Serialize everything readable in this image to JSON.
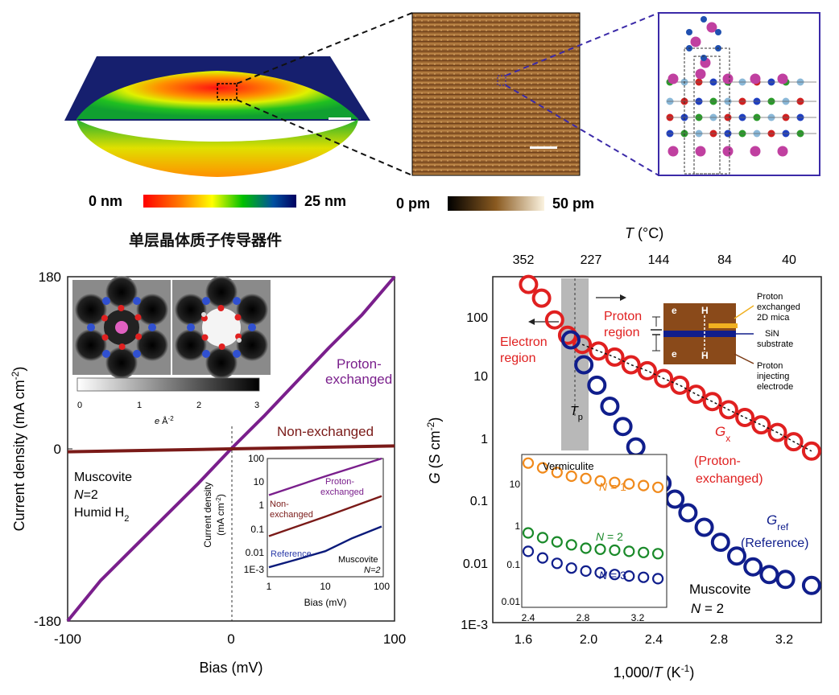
{
  "colors": {
    "proton": "#7a1f8c",
    "nonex": "#7a1a18",
    "ref": "#0a1a7a",
    "red": "#e02020",
    "blue": "#101e8c",
    "orange": "#f08a1c",
    "green": "#1a8a2a",
    "frame": "#3b2aa8"
  },
  "top": {
    "title": "单层晶体质子传导器件",
    "cb1": {
      "min": "0 nm",
      "max": "25 nm"
    },
    "cb2": {
      "min": "0 pm",
      "max": "50 pm"
    }
  },
  "left": {
    "ylabel": "Current density (mA cm",
    "ylabel_sup": "-2",
    "ylabel_end": ")",
    "xlabel": "Bias (mV)",
    "yticks": [
      "180",
      "0",
      "-180"
    ],
    "xticks": [
      "-100",
      "0",
      "100"
    ],
    "proton_label_1": "Proton-",
    "proton_label_2": "exchanged",
    "nonex_label": "Non-exchanged",
    "sample_1": "Muscovite",
    "sample_2_a": "N",
    "sample_2_b": "=2",
    "sample_3": "Humid H",
    "sample_3_sub": "2",
    "map_cb_ticks": [
      "0",
      "1",
      "2",
      "3"
    ],
    "map_cb_unit_a": "e",
    "map_cb_unit_b": " Å",
    "map_cb_unit_sup": "-2",
    "inset": {
      "yticks": [
        "100",
        "10",
        "1",
        "0.1",
        "0.01",
        "1E-3"
      ],
      "xticks": [
        "1",
        "10",
        "100"
      ],
      "xlabel": "Bias (mV)",
      "ylabel_1": "Current density",
      "ylabel_2": "(mA cm",
      "ylabel_sup": "-2",
      "ylabel_end": ")",
      "lbl_proton_1": "Proton-",
      "lbl_proton_2": "exchanged",
      "lbl_nonex_1": "Non-",
      "lbl_nonex_2": "exchanged",
      "lbl_ref": "Reference",
      "lbl_musc": "Muscovite",
      "lbl_n": "N=2"
    }
  },
  "right": {
    "top_label": "T",
    "top_unit": " (°C)",
    "top_ticks": [
      "352",
      "227",
      "144",
      "84",
      "40"
    ],
    "xlabel": "1,000/",
    "xlabel_t": "T",
    "xlabel_end": " (K",
    "xlabel_sup": "-1",
    "xlabel_close": ")",
    "ylabel_g": "G",
    "ylabel_rest": " (S cm",
    "ylabel_sup": "-2",
    "ylabel_end": ")",
    "yticks": [
      "100",
      "10",
      "1",
      "0.1",
      "0.01",
      "1E-3"
    ],
    "xticks": [
      "1.6",
      "2.0",
      "2.4",
      "2.8",
      "3.2"
    ],
    "electron_1": "Electron",
    "electron_2": "region",
    "proton_1": "Proton",
    "proton_2": "region",
    "tp": "T",
    "tp_sub": "p",
    "gx": "G",
    "gx_sub": "x",
    "gx_1": "(Proton-",
    "gx_2": "exchanged)",
    "gref": "G",
    "gref_sub": "ref",
    "gref_2": "(Reference)",
    "musc": "Muscovite",
    "musc_n": "N",
    "musc_n2": " = 2",
    "device": {
      "e": "e",
      "h": "H",
      "l1a": "Proton",
      "l1b": "exchanged",
      "l1c": "2D mica",
      "l2a": "SiN",
      "l2b": "substrate",
      "l3a": "Proton",
      "l3b": "injecting",
      "l3c": "electrode"
    },
    "inset": {
      "title": "Vermiculite",
      "n1": "N",
      "n1v": " = 1",
      "n2": "N",
      "n2v": " = 2",
      "n3": "N",
      "n3v": " = 3",
      "yticks": [
        "10",
        "1",
        "0.1",
        "0.01"
      ],
      "xticks": [
        "2.4",
        "2.8",
        "3.2"
      ]
    }
  },
  "chart_data": [
    {
      "type": "line",
      "xlabel": "Bias (mV)",
      "ylabel": "Current density (mA cm-2)",
      "xlim": [
        -100,
        100
      ],
      "ylim": [
        -180,
        180
      ],
      "series": [
        {
          "name": "Proton-exchanged",
          "x": [
            -100,
            -80,
            -60,
            -40,
            -20,
            0,
            20,
            40,
            60,
            80,
            100
          ],
          "y": [
            -180,
            -138,
            -104,
            -70,
            -36,
            0,
            34,
            70,
            106,
            140,
            180
          ]
        },
        {
          "name": "Non-exchanged",
          "x": [
            -100,
            0,
            100
          ],
          "y": [
            -3,
            0,
            3
          ]
        }
      ]
    },
    {
      "type": "line",
      "xlabel": "Bias (mV)",
      "ylabel": "Current density (mA cm-2)",
      "xscale": "log",
      "yscale": "log",
      "xlim": [
        1,
        100
      ],
      "ylim": [
        0.0005,
        100
      ],
      "series": [
        {
          "name": "Proton-exchanged",
          "x": [
            1,
            10,
            100
          ],
          "y": [
            2,
            15,
            120
          ]
        },
        {
          "name": "Non-exchanged",
          "x": [
            1,
            10,
            100
          ],
          "y": [
            0.025,
            0.2,
            1.8
          ]
        },
        {
          "name": "Reference",
          "x": [
            1,
            3,
            10,
            30,
            100
          ],
          "y": [
            0.0009,
            0.002,
            0.005,
            0.02,
            0.07
          ]
        }
      ]
    },
    {
      "type": "scatter",
      "xlabel": "1,000/T (K-1)",
      "ylabel": "G (S cm-2)",
      "yscale": "log",
      "xlim": [
        1.4,
        3.42
      ],
      "ylim": [
        0.001,
        400
      ],
      "series": [
        {
          "name": "Gx (Proton-exchanged)",
          "x": [
            1.62,
            1.7,
            1.78,
            1.86,
            1.95,
            2.05,
            2.15,
            2.25,
            2.35,
            2.45,
            2.55,
            2.65,
            2.75,
            2.85,
            2.95,
            3.05,
            3.15,
            3.25,
            3.36
          ],
          "y": [
            300,
            180,
            80,
            45,
            32,
            25,
            20,
            15,
            12,
            9,
            7,
            5,
            3.8,
            2.8,
            2.1,
            1.6,
            1.2,
            0.85,
            0.6
          ]
        },
        {
          "name": "Gref (Reference)",
          "x": [
            1.88,
            1.96,
            2.04,
            2.12,
            2.2,
            2.28,
            2.36,
            2.44,
            2.52,
            2.6,
            2.7,
            2.8,
            2.9,
            3.0,
            3.1,
            3.2,
            3.36
          ],
          "y": [
            38,
            15,
            7,
            3.2,
            1.5,
            0.7,
            0.35,
            0.18,
            0.1,
            0.06,
            0.035,
            0.02,
            0.012,
            0.008,
            0.006,
            0.005,
            0.004
          ]
        }
      ],
      "top_axis": {
        "label": "T (°C)",
        "ticks": [
          352,
          227,
          144,
          84,
          40
        ]
      },
      "tp_x": 1.9
    },
    {
      "type": "scatter",
      "title": "Vermiculite",
      "yscale": "log",
      "xlim": [
        2.4,
        3.35
      ],
      "ylim": [
        0.01,
        25
      ],
      "series": [
        {
          "name": "N = 1",
          "x": [
            2.4,
            2.5,
            2.6,
            2.7,
            2.8,
            2.9,
            3.0,
            3.1,
            3.2,
            3.3
          ],
          "y": [
            18,
            14,
            11,
            9,
            8,
            7,
            6.5,
            6,
            5.5,
            5
          ]
        },
        {
          "name": "N = 2",
          "x": [
            2.4,
            2.5,
            2.6,
            2.7,
            2.8,
            2.9,
            3.0,
            3.1,
            3.2,
            3.3
          ],
          "y": [
            0.45,
            0.35,
            0.28,
            0.24,
            0.2,
            0.19,
            0.18,
            0.17,
            0.16,
            0.15
          ]
        },
        {
          "name": "N = 3",
          "x": [
            2.4,
            2.5,
            2.6,
            2.7,
            2.8,
            2.9,
            3.0,
            3.1,
            3.2,
            3.3
          ],
          "y": [
            0.17,
            0.12,
            0.09,
            0.07,
            0.06,
            0.055,
            0.05,
            0.046,
            0.043,
            0.04
          ]
        }
      ]
    }
  ]
}
